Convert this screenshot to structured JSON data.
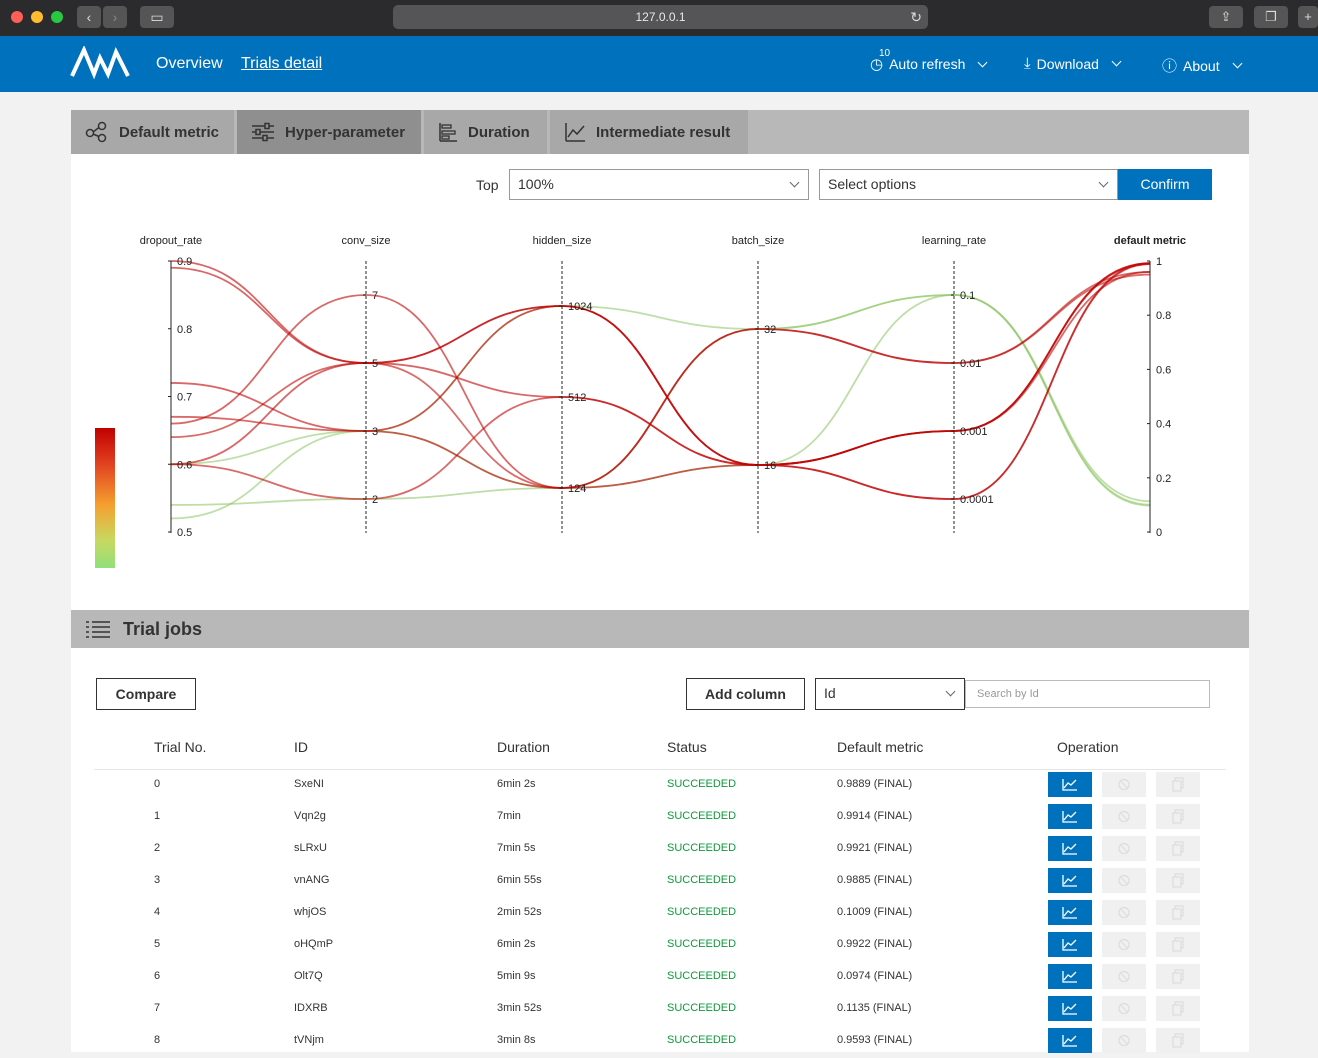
{
  "browser": {
    "address": "127.0.0.1"
  },
  "header": {
    "nav": [
      "Overview",
      "Trials detail"
    ],
    "auto_refresh": {
      "label": "Auto refresh",
      "interval": "10"
    },
    "download": "Download",
    "about": "About"
  },
  "tabs": [
    "Default metric",
    "Hyper-parameter",
    "Duration",
    "Intermediate result"
  ],
  "controls": {
    "top_label": "Top",
    "top_value": "100%",
    "select_placeholder": "Select options",
    "confirm": "Confirm"
  },
  "chart_data": {
    "type": "parallel-coordinates",
    "axes": [
      {
        "name": "dropout_rate",
        "ticks": [
          "0.5",
          "0.6",
          "0.7",
          "0.8",
          "0.9"
        ]
      },
      {
        "name": "conv_size",
        "ticks": [
          "2",
          "3",
          "5",
          "7"
        ]
      },
      {
        "name": "hidden_size",
        "ticks": [
          "124",
          "512",
          "1024"
        ]
      },
      {
        "name": "batch_size",
        "ticks": [
          "16",
          "32"
        ]
      },
      {
        "name": "learning_rate",
        "ticks": [
          "0.0001",
          "0.001",
          "0.01",
          "0.1"
        ]
      },
      {
        "name": "default metric",
        "ticks": [
          "0",
          "0.2",
          "0.4",
          "0.6",
          "0.8",
          "1"
        ]
      }
    ],
    "color_scale": {
      "low": "#90e07a",
      "high": "#c00000"
    },
    "lines": [
      {
        "values": [
          0.89,
          "5",
          "1024",
          "16",
          "0.0001",
          0.9889
        ]
      },
      {
        "values": [
          0.9,
          "5",
          "512",
          "16",
          "0.001",
          0.9914
        ]
      },
      {
        "values": [
          0.72,
          "3",
          "1024",
          "16",
          "0.001",
          0.9921
        ]
      },
      {
        "values": [
          0.66,
          "7",
          "124",
          "16",
          "0.001",
          0.9885
        ]
      },
      {
        "values": [
          0.52,
          "3",
          "124",
          "32",
          "0.1",
          0.1009
        ]
      },
      {
        "values": [
          0.6,
          "5",
          "1024",
          "16",
          "0.0001",
          0.9922
        ]
      },
      {
        "values": [
          0.6,
          "3",
          "1024",
          "32",
          "0.1",
          0.0974
        ]
      },
      {
        "values": [
          0.54,
          "2",
          "124",
          "16",
          "0.1",
          0.1135
        ]
      },
      {
        "values": [
          0.67,
          "3",
          "124",
          "32",
          "0.01",
          0.9593
        ]
      },
      {
        "values": [
          0.6,
          "2",
          "512",
          "16",
          "0.001",
          0.96
        ]
      },
      {
        "values": [
          0.64,
          "5",
          "124",
          "32",
          "0.01",
          0.95
        ]
      }
    ]
  },
  "trial_jobs": {
    "title": "Trial jobs",
    "compare": "Compare",
    "add_column": "Add column",
    "filter_value": "Id",
    "search_placeholder": "Search by Id",
    "columns": [
      "Trial No.",
      "ID",
      "Duration",
      "Status",
      "Default metric",
      "Operation"
    ],
    "rows": [
      [
        "0",
        "SxeNI",
        "6min 2s",
        "SUCCEEDED",
        "0.9889 (FINAL)"
      ],
      [
        "1",
        "Vqn2g",
        "7min",
        "SUCCEEDED",
        "0.9914 (FINAL)"
      ],
      [
        "2",
        "sLRxU",
        "7min 5s",
        "SUCCEEDED",
        "0.9921 (FINAL)"
      ],
      [
        "3",
        "vnANG",
        "6min 55s",
        "SUCCEEDED",
        "0.9885 (FINAL)"
      ],
      [
        "4",
        "whjOS",
        "2min 52s",
        "SUCCEEDED",
        "0.1009 (FINAL)"
      ],
      [
        "5",
        "oHQmP",
        "6min 2s",
        "SUCCEEDED",
        "0.9922 (FINAL)"
      ],
      [
        "6",
        "Olt7Q",
        "5min 9s",
        "SUCCEEDED",
        "0.0974 (FINAL)"
      ],
      [
        "7",
        "IDXRB",
        "3min 52s",
        "SUCCEEDED",
        "0.1135 (FINAL)"
      ],
      [
        "8",
        "tVNjm",
        "3min 8s",
        "SUCCEEDED",
        "0.9593 (FINAL)"
      ]
    ]
  }
}
